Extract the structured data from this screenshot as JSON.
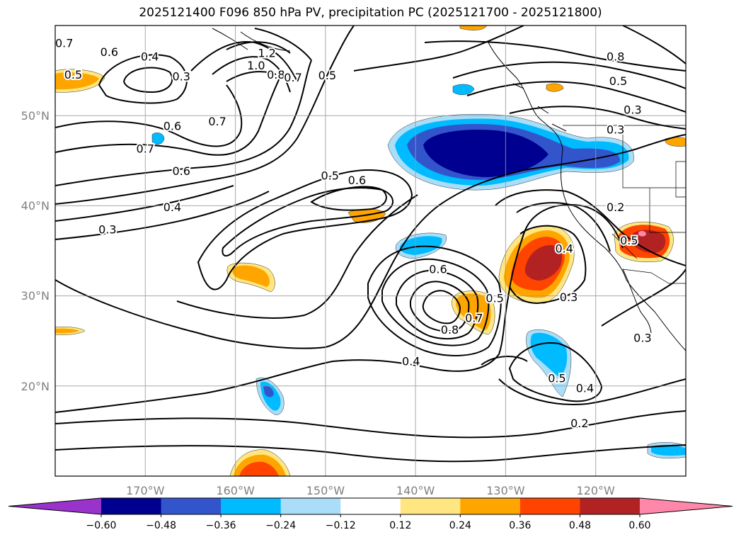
{
  "title": "2025121400 F096 850 hPa PV, precipitation PC (2025121700 - 2025121800)",
  "map": {
    "projection": "plate carree",
    "lon_range": [
      -180,
      -110
    ],
    "lat_range": [
      10,
      60
    ],
    "grid": true,
    "lon_labels": [
      "170°W",
      "160°W",
      "150°W",
      "140°W",
      "130°W",
      "120°W"
    ],
    "lat_labels": [
      "50°N",
      "40°N",
      "30°N",
      "20°N"
    ],
    "contour_labels": [
      {
        "text": "0.7",
        "lon": -179,
        "lat": 58
      },
      {
        "text": "0.6",
        "lon": -174,
        "lat": 57
      },
      {
        "text": "0.4",
        "lon": -169.5,
        "lat": 56.5
      },
      {
        "text": "0.3",
        "lon": -166,
        "lat": 54.3
      },
      {
        "text": "0.5",
        "lon": -178,
        "lat": 54.5
      },
      {
        "text": "1.2",
        "lon": -156.5,
        "lat": 56.9
      },
      {
        "text": "1.0",
        "lon": -157.7,
        "lat": 55.5
      },
      {
        "text": "0.8",
        "lon": -155.5,
        "lat": 54.5
      },
      {
        "text": "0.7",
        "lon": -153.6,
        "lat": 54.2
      },
      {
        "text": "0.5",
        "lon": -149.8,
        "lat": 54.4
      },
      {
        "text": "0.6",
        "lon": -167,
        "lat": 48.8
      },
      {
        "text": "0.7",
        "lon": -162,
        "lat": 49.3
      },
      {
        "text": "0.7",
        "lon": -170,
        "lat": 46.3
      },
      {
        "text": "0.6",
        "lon": -166,
        "lat": 43.8
      },
      {
        "text": "0.4",
        "lon": -167,
        "lat": 39.8
      },
      {
        "text": "0.3",
        "lon": -174.2,
        "lat": 37.3
      },
      {
        "text": "0.5",
        "lon": -149.5,
        "lat": 43.3
      },
      {
        "text": "0.6",
        "lon": -146.5,
        "lat": 42.8
      },
      {
        "text": "0.6",
        "lon": -137.5,
        "lat": 32.9
      },
      {
        "text": "0.5",
        "lon": -131.2,
        "lat": 29.7
      },
      {
        "text": "0.7",
        "lon": -133.5,
        "lat": 27.5
      },
      {
        "text": "0.8",
        "lon": -136.2,
        "lat": 26.2
      },
      {
        "text": "0.4",
        "lon": -140.5,
        "lat": 22.7
      },
      {
        "text": "0.8",
        "lon": -117.8,
        "lat": 56.5
      },
      {
        "text": "0.5",
        "lon": -117.5,
        "lat": 53.8
      },
      {
        "text": "0.3",
        "lon": -115.9,
        "lat": 50.6
      },
      {
        "text": "0.3",
        "lon": -117.8,
        "lat": 48.4
      },
      {
        "text": "0.2",
        "lon": -117.8,
        "lat": 39.8
      },
      {
        "text": "0.5",
        "lon": -116.3,
        "lat": 36.1
      },
      {
        "text": "0.4",
        "lon": -123.5,
        "lat": 35.2
      },
      {
        "text": "0.3",
        "lon": -123,
        "lat": 29.8
      },
      {
        "text": "0.3",
        "lon": -114.8,
        "lat": 25.3
      },
      {
        "text": "0.5",
        "lon": -124.3,
        "lat": 20.8
      },
      {
        "text": "0.4",
        "lon": -121.2,
        "lat": 19.7
      },
      {
        "text": "0.2",
        "lon": -121.8,
        "lat": 15.8
      }
    ]
  },
  "colorbar": {
    "ticks": [
      "−0.60",
      "−0.48",
      "−0.36",
      "−0.24",
      "−0.12",
      "0.12",
      "0.24",
      "0.36",
      "0.48",
      "0.60"
    ],
    "colors": [
      "#9933cc",
      "#000090",
      "#3355cc",
      "#00bbff",
      "#aaddf8",
      "#ffffff",
      "#ffe680",
      "#ffa500",
      "#ff4400",
      "#b22222",
      "#ff88aa"
    ]
  }
}
